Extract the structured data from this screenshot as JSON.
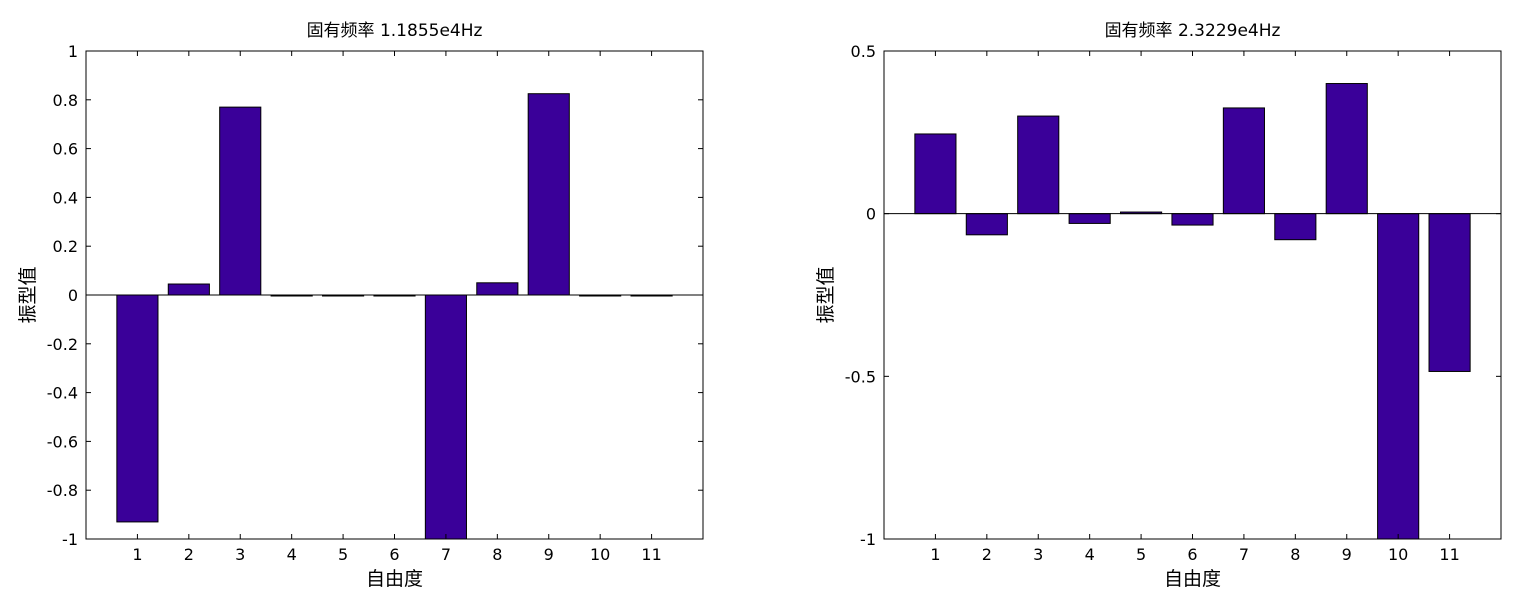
{
  "figure": {
    "background": "#ffffff",
    "bar_color": "#3a0099",
    "axis_color": "#000000"
  },
  "chart_data": [
    {
      "type": "bar",
      "title": "固有频率 1.1855e4Hz",
      "xlabel": "自由度",
      "ylabel": "振型值",
      "categories": [
        "1",
        "2",
        "3",
        "4",
        "5",
        "6",
        "7",
        "8",
        "9",
        "10",
        "11"
      ],
      "values": [
        -0.93,
        0.045,
        0.77,
        -0.004,
        -0.004,
        -0.004,
        -1.0,
        0.05,
        0.825,
        -0.004,
        -0.004
      ],
      "ylim": [
        -1,
        1
      ],
      "yticks": [
        -1,
        -0.8,
        -0.6,
        -0.4,
        -0.2,
        0,
        0.2,
        0.4,
        0.6,
        0.8,
        1
      ],
      "ytick_labels": [
        "-1",
        "-0.8",
        "-0.6",
        "-0.4",
        "-0.2",
        "0",
        "0.2",
        "0.4",
        "0.6",
        "0.8",
        "1"
      ],
      "grid": false,
      "legend": "none"
    },
    {
      "type": "bar",
      "title": "固有频率 2.3229e4Hz",
      "xlabel": "自由度",
      "ylabel": "振型值",
      "categories": [
        "1",
        "2",
        "3",
        "4",
        "5",
        "6",
        "7",
        "8",
        "9",
        "10",
        "11"
      ],
      "values": [
        0.245,
        -0.065,
        0.3,
        -0.03,
        0.005,
        -0.035,
        0.325,
        -0.08,
        0.4,
        -1.0,
        -0.485
      ],
      "ylim": [
        -1,
        0.5
      ],
      "yticks": [
        -1,
        -0.5,
        0,
        0.5
      ],
      "ytick_labels": [
        "-1",
        "-0.5",
        "0",
        "0.5"
      ],
      "grid": false,
      "legend": "none"
    }
  ]
}
